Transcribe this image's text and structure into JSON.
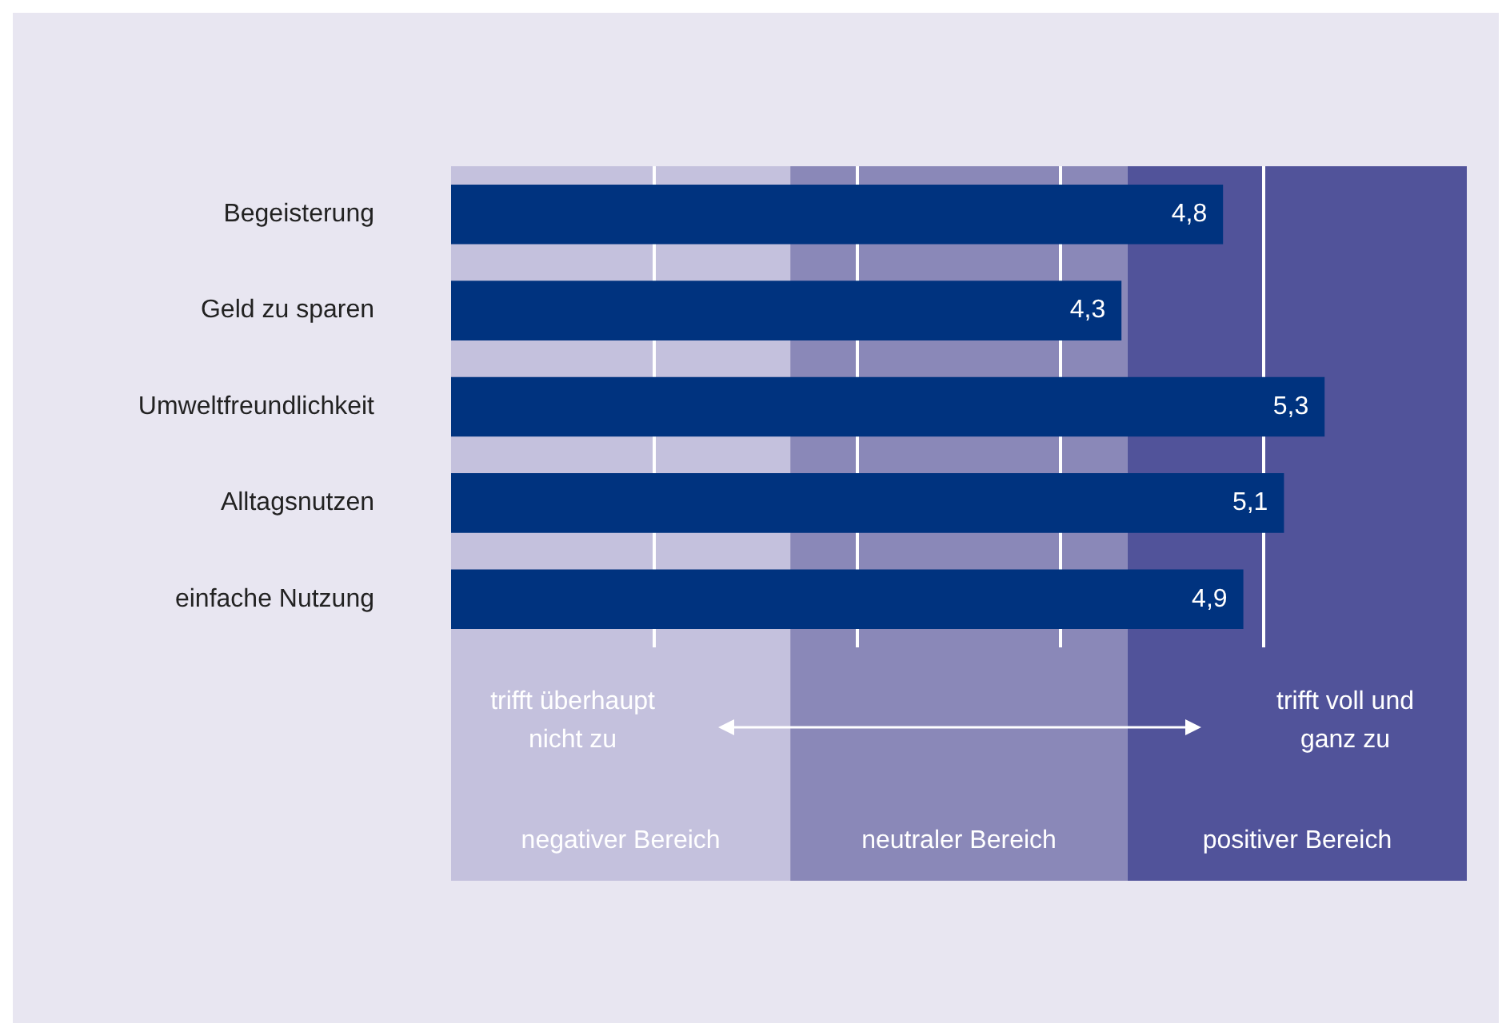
{
  "chart_data": {
    "type": "bar",
    "orientation": "horizontal",
    "categories": [
      "Begeisterung",
      "Geld zu sparen",
      "Umweltfreundlichkeit",
      "Alltagsnutzen",
      "einfache Nutzung"
    ],
    "values": [
      4.8,
      4.3,
      5.3,
      5.1,
      4.9
    ],
    "color": "#00337f",
    "value_labels": [
      "4,8",
      "4,3",
      "5,3",
      "5,1",
      "4,9"
    ],
    "xticks": [
      {
        "value": 2,
        "label": null
      },
      {
        "value": 3,
        "label": null
      },
      {
        "value": 4,
        "label": null
      },
      {
        "value": 5,
        "label": null
      }
    ],
    "grid": "x",
    "tick_labels": "y",
    "legend": false,
    "bands": [
      {
        "axis": "x",
        "from": 1,
        "to": 2.67,
        "label": "negativer Bereich",
        "color": "#c4c1dd"
      },
      {
        "axis": "x",
        "from": 2.67,
        "to": 4.33,
        "label": "neutraler Bereich",
        "color": "#8a88b8"
      },
      {
        "axis": "x",
        "from": 4.33,
        "to": 6,
        "label": "positiver Bereich",
        "color": "#51539a"
      }
    ],
    "annotations": [
      "trifft überhaupt\nnicht zu",
      "trifft voll und\nganz zu"
    ]
  }
}
